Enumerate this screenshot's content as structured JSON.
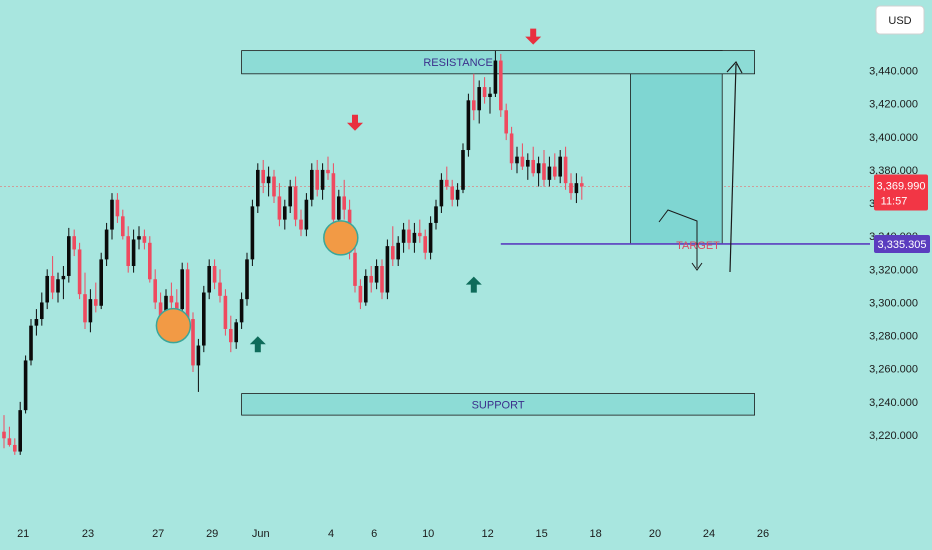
{
  "currency_button": "USD",
  "chart_data": {
    "type": "candlestick",
    "price_badge": {
      "value": "3,369.990",
      "countdown": "11:57",
      "color": "#f23645"
    },
    "target_badge": {
      "value": "3,335.305",
      "color": "#5b3dbf"
    },
    "y_ticks": [
      3440,
      3420,
      3400,
      3380,
      3360,
      3340,
      3320,
      3300,
      3280,
      3260,
      3240,
      3220
    ],
    "y_tick_labels": [
      "3,440.000",
      "3,420.000",
      "3,400.000",
      "3,380.000",
      "3,360.000",
      "3,340.000",
      "3,320.000",
      "3,300.000",
      "3,280.000",
      "3,260.000",
      "3,240.000",
      "3,220.000"
    ],
    "x_ticks": [
      {
        "label": "21",
        "bar": 3
      },
      {
        "label": "23",
        "bar": 15
      },
      {
        "label": "27",
        "bar": 28
      },
      {
        "label": "29",
        "bar": 38
      },
      {
        "label": "Jun",
        "bar": 47
      },
      {
        "label": "4",
        "bar": 60
      },
      {
        "label": "6",
        "bar": 68
      },
      {
        "label": "10",
        "bar": 78
      },
      {
        "label": "12",
        "bar": 89
      },
      {
        "label": "15",
        "bar": 99
      },
      {
        "label": "18",
        "bar": 109
      },
      {
        "label": "20",
        "bar": 120
      },
      {
        "label": "24",
        "bar": 130
      },
      {
        "label": "26",
        "bar": 140
      }
    ],
    "zones": {
      "resistance": {
        "label": "RESISTANCE",
        "low": 3438,
        "high": 3452,
        "bar_start": 44,
        "bar_end": 139
      },
      "support": {
        "label": "SUPPORT",
        "low": 3232,
        "high": 3245,
        "bar_start": 44,
        "bar_end": 139
      },
      "target": {
        "label": "TARGET",
        "price": 3335.305,
        "bar_start": 92,
        "bar_end": 160
      },
      "projection": {
        "low": 3335.305,
        "high": 3452,
        "bar_start": 116,
        "bar_end": 133
      }
    },
    "colors": {
      "up": "#0b0b0b",
      "down": "#ef4a5f",
      "sell_arrow": "#e8303f",
      "buy_arrow": "#0e6b5a",
      "circle": "#f29a45",
      "zone_fill": "#8ddcd6",
      "projection_fill": "#7fd6d2"
    },
    "markers": {
      "sell": [
        {
          "bar": 65,
          "price": 3400
        },
        {
          "bar": 98,
          "price": 3452
        }
      ],
      "buy": [
        {
          "bar": 47,
          "price": 3282
        },
        {
          "bar": 87,
          "price": 3318
        }
      ],
      "circles": [
        {
          "bar": 31,
          "price": 3286
        },
        {
          "bar": 62,
          "price": 3339
        }
      ]
    },
    "ohlc": [
      [
        3222,
        3232,
        3212,
        3218
      ],
      [
        3218,
        3225,
        3213,
        3214
      ],
      [
        3214,
        3218,
        3208,
        3210
      ],
      [
        3210,
        3240,
        3208,
        3235
      ],
      [
        3235,
        3268,
        3233,
        3265
      ],
      [
        3265,
        3290,
        3262,
        3286
      ],
      [
        3286,
        3296,
        3280,
        3290
      ],
      [
        3290,
        3306,
        3286,
        3300
      ],
      [
        3300,
        3320,
        3296,
        3316
      ],
      [
        3316,
        3328,
        3302,
        3306
      ],
      [
        3306,
        3318,
        3300,
        3314
      ],
      [
        3314,
        3322,
        3302,
        3316
      ],
      [
        3316,
        3345,
        3312,
        3340
      ],
      [
        3340,
        3344,
        3328,
        3332
      ],
      [
        3332,
        3336,
        3302,
        3305
      ],
      [
        3305,
        3318,
        3284,
        3288
      ],
      [
        3288,
        3308,
        3282,
        3302
      ],
      [
        3302,
        3312,
        3294,
        3298
      ],
      [
        3298,
        3330,
        3296,
        3326
      ],
      [
        3326,
        3348,
        3322,
        3344
      ],
      [
        3344,
        3366,
        3338,
        3362
      ],
      [
        3362,
        3366,
        3348,
        3352
      ],
      [
        3352,
        3356,
        3338,
        3340
      ],
      [
        3340,
        3346,
        3318,
        3322
      ],
      [
        3322,
        3344,
        3318,
        3338
      ],
      [
        3338,
        3346,
        3332,
        3340
      ],
      [
        3340,
        3344,
        3332,
        3336
      ],
      [
        3336,
        3340,
        3312,
        3314
      ],
      [
        3314,
        3320,
        3296,
        3300
      ],
      [
        3300,
        3306,
        3288,
        3290
      ],
      [
        3290,
        3308,
        3286,
        3304
      ],
      [
        3304,
        3312,
        3296,
        3300
      ],
      [
        3300,
        3308,
        3290,
        3296
      ],
      [
        3296,
        3324,
        3292,
        3320
      ],
      [
        3320,
        3324,
        3288,
        3290
      ],
      [
        3290,
        3294,
        3258,
        3262
      ],
      [
        3262,
        3278,
        3246,
        3274
      ],
      [
        3274,
        3310,
        3270,
        3306
      ],
      [
        3306,
        3326,
        3302,
        3322
      ],
      [
        3322,
        3326,
        3308,
        3312
      ],
      [
        3312,
        3320,
        3300,
        3304
      ],
      [
        3304,
        3308,
        3280,
        3284
      ],
      [
        3284,
        3292,
        3270,
        3276
      ],
      [
        3276,
        3290,
        3272,
        3288
      ],
      [
        3288,
        3306,
        3284,
        3302
      ],
      [
        3302,
        3330,
        3298,
        3326
      ],
      [
        3326,
        3362,
        3322,
        3358
      ],
      [
        3358,
        3384,
        3354,
        3380
      ],
      [
        3380,
        3386,
        3366,
        3372
      ],
      [
        3372,
        3382,
        3364,
        3376
      ],
      [
        3376,
        3380,
        3360,
        3364
      ],
      [
        3364,
        3372,
        3346,
        3350
      ],
      [
        3350,
        3362,
        3344,
        3358
      ],
      [
        3358,
        3374,
        3354,
        3370
      ],
      [
        3370,
        3376,
        3346,
        3350
      ],
      [
        3350,
        3356,
        3340,
        3344
      ],
      [
        3344,
        3366,
        3340,
        3362
      ],
      [
        3362,
        3384,
        3358,
        3380
      ],
      [
        3380,
        3386,
        3364,
        3368
      ],
      [
        3368,
        3384,
        3362,
        3380
      ],
      [
        3380,
        3388,
        3374,
        3378
      ],
      [
        3378,
        3384,
        3346,
        3350
      ],
      [
        3350,
        3368,
        3346,
        3364
      ],
      [
        3364,
        3374,
        3350,
        3356
      ],
      [
        3356,
        3362,
        3326,
        3330
      ],
      [
        3330,
        3338,
        3306,
        3310
      ],
      [
        3310,
        3314,
        3296,
        3300
      ],
      [
        3300,
        3320,
        3298,
        3316
      ],
      [
        3316,
        3322,
        3306,
        3312
      ],
      [
        3312,
        3326,
        3308,
        3322
      ],
      [
        3322,
        3326,
        3302,
        3306
      ],
      [
        3306,
        3338,
        3302,
        3334
      ],
      [
        3334,
        3346,
        3322,
        3326
      ],
      [
        3326,
        3340,
        3322,
        3336
      ],
      [
        3336,
        3348,
        3330,
        3344
      ],
      [
        3344,
        3350,
        3332,
        3336
      ],
      [
        3336,
        3348,
        3330,
        3342
      ],
      [
        3342,
        3350,
        3336,
        3340
      ],
      [
        3340,
        3344,
        3326,
        3330
      ],
      [
        3330,
        3352,
        3326,
        3348
      ],
      [
        3348,
        3362,
        3344,
        3358
      ],
      [
        3358,
        3378,
        3354,
        3374
      ],
      [
        3374,
        3382,
        3368,
        3370
      ],
      [
        3370,
        3374,
        3358,
        3362
      ],
      [
        3362,
        3372,
        3358,
        3368
      ],
      [
        3368,
        3396,
        3366,
        3392
      ],
      [
        3392,
        3426,
        3388,
        3422
      ],
      [
        3422,
        3438,
        3410,
        3416
      ],
      [
        3416,
        3434,
        3408,
        3430
      ],
      [
        3430,
        3436,
        3420,
        3424
      ],
      [
        3424,
        3430,
        3414,
        3426
      ],
      [
        3426,
        3452,
        3424,
        3446
      ],
      [
        3446,
        3450,
        3412,
        3416
      ],
      [
        3416,
        3420,
        3398,
        3402
      ],
      [
        3402,
        3406,
        3380,
        3384
      ],
      [
        3384,
        3394,
        3378,
        3388
      ],
      [
        3388,
        3396,
        3380,
        3382
      ],
      [
        3382,
        3390,
        3374,
        3386
      ],
      [
        3386,
        3394,
        3376,
        3378
      ],
      [
        3378,
        3388,
        3370,
        3384
      ],
      [
        3384,
        3392,
        3370,
        3374
      ],
      [
        3374,
        3388,
        3370,
        3382
      ],
      [
        3382,
        3390,
        3374,
        3376
      ],
      [
        3376,
        3392,
        3372,
        3388
      ],
      [
        3388,
        3394,
        3368,
        3372
      ],
      [
        3372,
        3378,
        3362,
        3366
      ],
      [
        3366,
        3378,
        3360,
        3372
      ],
      [
        3372,
        3376,
        3362,
        3370
      ]
    ]
  }
}
